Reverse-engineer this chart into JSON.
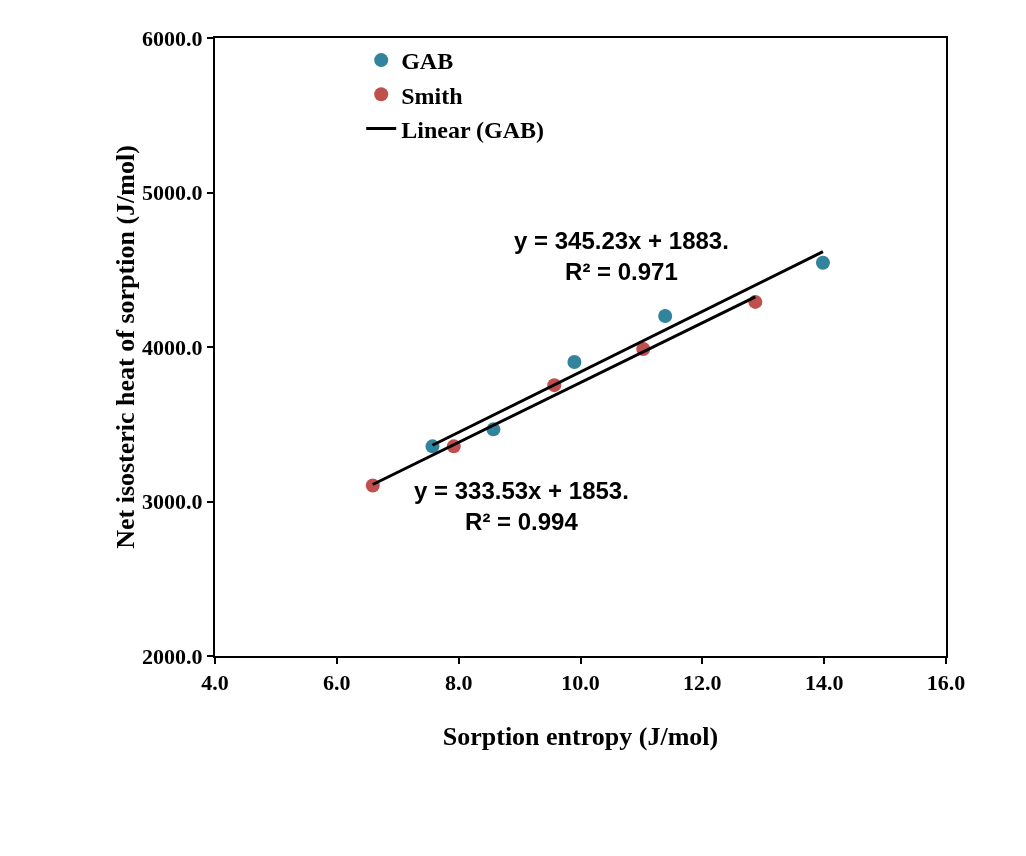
{
  "chart_data": {
    "type": "scatter",
    "xlabel": "Sorption entropy (J/mol)",
    "ylabel": "Net isosteric heat of sorption (J/mol)",
    "xlim": [
      4,
      16
    ],
    "xticks": [
      {
        "value": 4,
        "label": "4.0"
      },
      {
        "value": 6,
        "label": "6.0"
      },
      {
        "value": 8,
        "label": "8.0"
      },
      {
        "value": 10,
        "label": "10.0"
      },
      {
        "value": 12,
        "label": "12.0"
      },
      {
        "value": 14,
        "label": "14.0"
      },
      {
        "value": 16,
        "label": "16.0"
      }
    ],
    "ylim": [
      2000,
      6000
    ],
    "yticks": [
      {
        "value": 2000,
        "label": "2000.0"
      },
      {
        "value": 3000,
        "label": "3000.0"
      },
      {
        "value": 4000,
        "label": "4000.0"
      },
      {
        "value": 5000,
        "label": "5000.0"
      },
      {
        "value": 6000,
        "label": "6000.0"
      }
    ],
    "grid": false,
    "legend": "top left",
    "series": [
      {
        "name": "GAB",
        "color": "#31849b",
        "marker": "circle",
        "x": [
          7.57,
          8.57,
          9.9,
          11.39,
          13.98
        ],
        "values": [
          3357,
          3467,
          3903,
          4201,
          4545
        ]
      },
      {
        "name": "Smith",
        "color": "#c0504d",
        "marker": "circle",
        "x": [
          6.59,
          7.92,
          9.57,
          11.03,
          12.87
        ],
        "values": [
          3104,
          3357,
          3753,
          3987,
          4292
        ]
      },
      {
        "name": "Linear (GAB)",
        "type": "line",
        "marker": "none",
        "color": "#000000",
        "x": [
          7.57,
          13.98
        ],
        "values": [
          3364,
          4617
        ]
      },
      {
        "type": "line",
        "marker": "none",
        "color": "#000000",
        "x": [
          6.59,
          12.87
        ],
        "values": [
          3110,
          4325
        ]
      }
    ],
    "annotations": [
      "y = 345.23x + 1883.\nR² = 0.971",
      "y = 333.53x + 1853.\nR² = 0.994"
    ]
  }
}
